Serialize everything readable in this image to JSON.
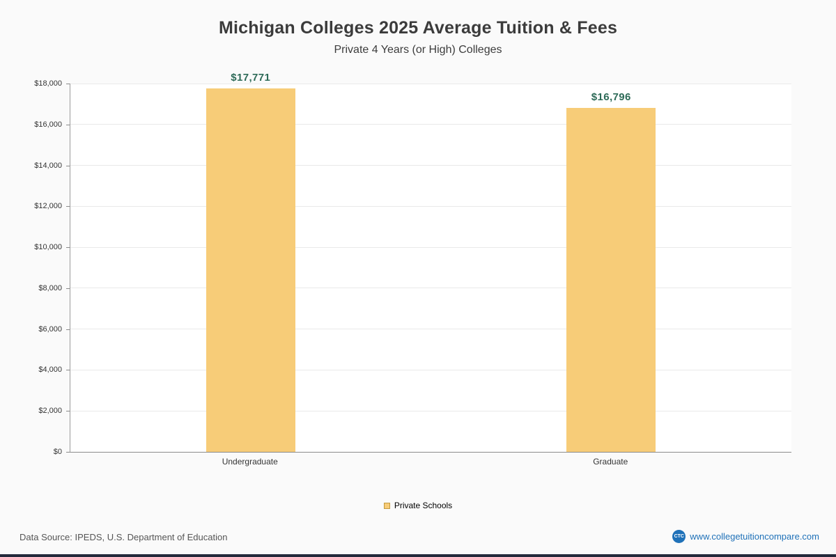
{
  "chart_data": {
    "type": "bar",
    "title": "Michigan Colleges 2025 Average Tuition & Fees",
    "subtitle": "Private 4 Years (or High)  Colleges",
    "categories": [
      "Undergraduate",
      "Graduate"
    ],
    "series": [
      {
        "name": "Private Schools",
        "values": [
          17771,
          16796
        ]
      }
    ],
    "value_labels": [
      "$17,771",
      "$16,796"
    ],
    "ylim": [
      0,
      18000
    ],
    "yticks": [
      0,
      2000,
      4000,
      6000,
      8000,
      10000,
      12000,
      14000,
      16000,
      18000
    ],
    "ytick_labels": [
      "$0",
      "$2,000",
      "$4,000",
      "$6,000",
      "$8,000",
      "$10,000",
      "$12,000",
      "$14,000",
      "$16,000",
      "$18,000"
    ],
    "grid": true,
    "legend_position": "bottom",
    "bar_color": "#f7cc78",
    "value_label_color": "#2e6b58"
  },
  "legend": {
    "items": [
      {
        "label": "Private Schools",
        "color": "#f7cc78"
      }
    ]
  },
  "footer": {
    "source": "Data Source: IPEDS, U.S. Department of Education",
    "site": "www.collegetuitioncompare.com",
    "logo": "CTC"
  }
}
